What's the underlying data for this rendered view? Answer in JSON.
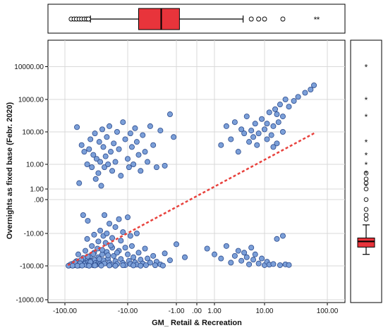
{
  "chart_data": {
    "type": "scatter",
    "xlabel": "GM_ Retail & Recreation",
    "ylabel": "Overnights as fixed base (Febr. 2020)",
    "x_scale": "symmetric-log",
    "y_scale": "symmetric-log",
    "xlim": [
      -150,
      150
    ],
    "ylim": [
      -1000,
      50000
    ],
    "x_ticks": [
      {
        "value": -100,
        "label": "-100.00"
      },
      {
        "value": -10,
        "label": "-10.00"
      },
      {
        "value": -1,
        "label": "-1.00"
      },
      {
        "value": 0,
        "label": ".00"
      },
      {
        "value": 1,
        "label": "1.00"
      },
      {
        "value": 10,
        "label": "10.00"
      },
      {
        "value": 100,
        "label": "100.00"
      }
    ],
    "y_ticks": [
      {
        "value": 10000,
        "label": "10000.00"
      },
      {
        "value": 1000,
        "label": "1000.00"
      },
      {
        "value": 100,
        "label": "100.00"
      },
      {
        "value": 10,
        "label": "10.00"
      },
      {
        "value": 1,
        "label": "1.00"
      },
      {
        "value": 0,
        "label": ".00"
      },
      {
        "value": -10,
        "label": "-10.00"
      },
      {
        "value": -100,
        "label": "-100.00"
      },
      {
        "value": -1000,
        "label": "-1000.00"
      }
    ],
    "grid": true,
    "fit_line": {
      "from": [
        -90,
        -95
      ],
      "to": [
        65,
        95
      ],
      "color": "#e8413c",
      "style": "dashed"
    },
    "marker_fill": "#7b9fd8",
    "marker_edge": "#2b4a8c",
    "points": [
      [
        -85,
        -97
      ],
      [
        -80,
        -95
      ],
      [
        -75,
        -93
      ],
      [
        -72,
        -96
      ],
      [
        -70,
        -90
      ],
      [
        -68,
        -94
      ],
      [
        -65,
        -85
      ],
      [
        -62,
        -92
      ],
      [
        -60,
        -97
      ],
      [
        -58,
        -80
      ],
      [
        -55,
        -88
      ],
      [
        -52,
        -93
      ],
      [
        -50,
        -70
      ],
      [
        -48,
        -85
      ],
      [
        -46,
        -95
      ],
      [
        -45,
        -60
      ],
      [
        -43,
        -78
      ],
      [
        -42,
        -90
      ],
      [
        -40,
        -50
      ],
      [
        -38,
        -72
      ],
      [
        -37,
        -88
      ],
      [
        -36,
        -96
      ],
      [
        -35,
        -40
      ],
      [
        -34,
        -65
      ],
      [
        -33,
        -82
      ],
      [
        -32,
        -92
      ],
      [
        -31,
        -30
      ],
      [
        -30,
        -55
      ],
      [
        -29,
        -75
      ],
      [
        -28,
        -88
      ],
      [
        -27,
        -95
      ],
      [
        -26,
        -45
      ],
      [
        -25,
        -68
      ],
      [
        -24,
        -85
      ],
      [
        -23,
        -20
      ],
      [
        -22,
        -38
      ],
      [
        -21,
        -60
      ],
      [
        -20,
        -80
      ],
      [
        -19,
        -92
      ],
      [
        -18,
        -28
      ],
      [
        -17,
        -50
      ],
      [
        -16,
        -72
      ],
      [
        -15,
        -88
      ],
      [
        -14,
        -35
      ],
      [
        -13,
        -62
      ],
      [
        -12,
        -82
      ],
      [
        -11,
        -95
      ],
      [
        -10,
        -45
      ],
      [
        -9.5,
        -70
      ],
      [
        -9,
        -88
      ],
      [
        -8.5,
        -25
      ],
      [
        -8,
        -55
      ],
      [
        -7.5,
        -78
      ],
      [
        -7,
        -92
      ],
      [
        -6.5,
        -40
      ],
      [
        -6,
        -65
      ],
      [
        -5.5,
        -85
      ],
      [
        -5,
        -30
      ],
      [
        -4.5,
        -60
      ],
      [
        -4,
        -80
      ],
      [
        -3.5,
        -50
      ],
      [
        -3,
        -75
      ],
      [
        -2.5,
        -90
      ],
      [
        -2,
        -42
      ],
      [
        -1.5,
        -68
      ],
      [
        -62,
        -45
      ],
      [
        -48,
        -35
      ],
      [
        -38,
        -25
      ],
      [
        -30,
        -18
      ],
      [
        -25,
        -12
      ],
      [
        -45,
        -15
      ],
      [
        -35,
        -11
      ],
      [
        -22,
        -10
      ],
      [
        -18,
        -14
      ],
      [
        -28,
        -8
      ],
      [
        -16,
        -6
      ],
      [
        -12,
        -9
      ],
      [
        -20,
        -4.5
      ],
      [
        -14,
        -3
      ],
      [
        -10,
        -2.5
      ],
      [
        -24,
        -2
      ],
      [
        -52,
        -58
      ],
      [
        -66,
        -72
      ],
      [
        -78,
        -88
      ],
      [
        -56,
        -66
      ],
      [
        -44,
        -52
      ],
      [
        -36,
        -44
      ],
      [
        -26,
        -33
      ],
      [
        -19,
        -24
      ],
      [
        -13,
        -17
      ],
      [
        -9,
        -12
      ],
      [
        -7,
        -10
      ],
      [
        -11,
        -28
      ],
      [
        -15,
        -40
      ],
      [
        -21,
        -48
      ],
      [
        -29,
        -62
      ],
      [
        -40,
        -76
      ],
      [
        -58,
        -84
      ],
      [
        -70,
        -79
      ],
      [
        -82,
        -91
      ],
      [
        -88,
        -99
      ],
      [
        -76,
        -99
      ],
      [
        -64,
        -99
      ],
      [
        -54,
        -98
      ],
      [
        -42,
        -99
      ],
      [
        -34,
        -97
      ],
      [
        -27,
        -98
      ],
      [
        -20,
        -97
      ],
      [
        -16,
        -99
      ],
      [
        -12,
        -96
      ],
      [
        -8,
        -97
      ],
      [
        -6,
        -99
      ],
      [
        -4.8,
        -95
      ],
      [
        -3.2,
        -96
      ],
      [
        -2.2,
        -98
      ],
      [
        -65,
        140
      ],
      [
        -55,
        40
      ],
      [
        -50,
        25
      ],
      [
        -45,
        10
      ],
      [
        -42,
        30
      ],
      [
        -40,
        60
      ],
      [
        -38,
        8
      ],
      [
        -36,
        20
      ],
      [
        -34,
        90
      ],
      [
        -32,
        15
      ],
      [
        -30,
        5
      ],
      [
        -29,
        50
      ],
      [
        -28,
        12
      ],
      [
        -26,
        120
      ],
      [
        -25,
        35
      ],
      [
        -24,
        8
      ],
      [
        -23,
        18
      ],
      [
        -22,
        70
      ],
      [
        -21,
        10
      ],
      [
        -20,
        150
      ],
      [
        -19,
        25
      ],
      [
        -18,
        6
      ],
      [
        -17,
        45
      ],
      [
        -16,
        12
      ],
      [
        -15,
        100
      ],
      [
        -14,
        30
      ],
      [
        -13,
        4
      ],
      [
        -12,
        200
      ],
      [
        -11,
        60
      ],
      [
        -10,
        15
      ],
      [
        -9.5,
        8
      ],
      [
        -9,
        90
      ],
      [
        -8.5,
        35
      ],
      [
        -8,
        10
      ],
      [
        -7.5,
        130
      ],
      [
        -7,
        50
      ],
      [
        -6.5,
        20
      ],
      [
        -6,
        6
      ],
      [
        -5.5,
        80
      ],
      [
        -5,
        25
      ],
      [
        -4.5,
        12
      ],
      [
        -4,
        150
      ],
      [
        -3.5,
        40
      ],
      [
        -3,
        8
      ],
      [
        -2.5,
        110
      ],
      [
        -2,
        9
      ],
      [
        -1.5,
        350
      ],
      [
        -1.2,
        70
      ],
      [
        -60,
        2
      ],
      [
        -33,
        3
      ],
      [
        -27,
        1.5
      ],
      [
        -52,
        -2
      ],
      [
        -44,
        -3.5
      ],
      [
        1.5,
        40
      ],
      [
        2,
        150
      ],
      [
        2.5,
        60
      ],
      [
        3,
        200
      ],
      [
        3.5,
        25
      ],
      [
        4,
        120
      ],
      [
        4.5,
        90
      ],
      [
        5,
        300
      ],
      [
        5.5,
        50
      ],
      [
        6,
        110
      ],
      [
        6.5,
        70
      ],
      [
        7,
        180
      ],
      [
        7.5,
        40
      ],
      [
        8,
        90
      ],
      [
        9,
        250
      ],
      [
        10,
        120
      ],
      [
        11,
        60
      ],
      [
        12,
        400
      ],
      [
        13,
        80
      ],
      [
        14,
        150
      ],
      [
        15,
        500
      ],
      [
        16,
        45
      ],
      [
        17,
        200
      ],
      [
        18,
        700
      ],
      [
        20,
        300
      ],
      [
        22,
        1000
      ],
      [
        25,
        600
      ],
      [
        30,
        900
      ],
      [
        35,
        1200
      ],
      [
        45,
        1600
      ],
      [
        55,
        2000
      ],
      [
        62,
        2700
      ],
      [
        20,
        100
      ],
      [
        16,
        350
      ],
      [
        14,
        35
      ],
      [
        11,
        180
      ],
      [
        0.5,
        -30
      ],
      [
        1,
        -45
      ],
      [
        1.5,
        -60
      ],
      [
        2,
        -25
      ],
      [
        2.5,
        -80
      ],
      [
        3,
        -50
      ],
      [
        3.5,
        -35
      ],
      [
        4,
        -70
      ],
      [
        4.5,
        -40
      ],
      [
        5,
        -55
      ],
      [
        5.5,
        -90
      ],
      [
        6,
        -28
      ],
      [
        6.5,
        -65
      ],
      [
        7,
        -45
      ],
      [
        8,
        -85
      ],
      [
        9,
        -60
      ],
      [
        10,
        -95
      ],
      [
        11,
        -75
      ],
      [
        12,
        -92
      ],
      [
        14,
        -88
      ],
      [
        16,
        -15
      ],
      [
        18,
        -95
      ],
      [
        20,
        -12
      ],
      [
        22,
        -90
      ],
      [
        25,
        -94
      ],
      [
        -1,
        -22
      ],
      [
        -0.5,
        -55
      ]
    ],
    "marginal_top": {
      "type": "boxplot",
      "q1": -6.5,
      "median": -2.4,
      "q3": -0.8,
      "whisker_low": -40,
      "whisker_high": 4.3,
      "outliers": [
        -80,
        -72,
        -66,
        -60,
        -55,
        -50,
        -46,
        -43,
        6,
        8,
        10,
        20
      ],
      "extremes": [
        65,
        72
      ]
    },
    "marginal_right": {
      "type": "boxplot",
      "q1": -27,
      "median": -18,
      "q3": -14,
      "whisker_low": -45,
      "whisker_high": -5,
      "outliers": [
        -3,
        -2,
        -1,
        0,
        1,
        2,
        3,
        5
      ],
      "extremes": [
        10000,
        1000,
        300,
        50,
        20,
        10,
        5,
        1.5
      ]
    },
    "box_fill": "#e8343b"
  }
}
